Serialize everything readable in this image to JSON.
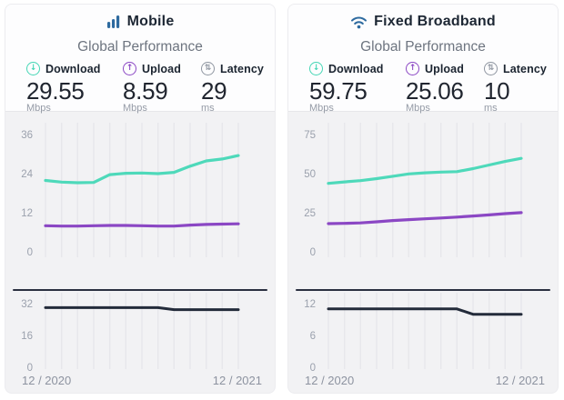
{
  "theme": {
    "download_color": "#4ed9ba",
    "upload_color": "#8b47c4",
    "latency_line_color": "#232b3a",
    "latency_icon_color": "#8f96a1",
    "brand_icon_blue": "#2d6a9f",
    "chart_background": "#f2f2f4"
  },
  "panels": [
    {
      "title": "Mobile",
      "icon": "mobile-signal-bars-icon",
      "section_title": "Global Performance",
      "stats": [
        {
          "label": "Download",
          "value": "29.55",
          "unit": "Mbps",
          "icon": "download-arrow-icon",
          "glyph": "↓",
          "color": "#45d6b5"
        },
        {
          "label": "Upload",
          "value": "8.59",
          "unit": "Mbps",
          "icon": "upload-arrow-icon",
          "glyph": "↑",
          "color": "#8b47c4"
        },
        {
          "label": "Latency",
          "value": "29",
          "unit": "ms",
          "icon": "latency-arrows-icon",
          "glyph": "⇅",
          "color": "#8f96a1"
        }
      ]
    },
    {
      "title": "Fixed Broadband",
      "icon": "wifi-icon",
      "section_title": "Global Performance",
      "stats": [
        {
          "label": "Download",
          "value": "59.75",
          "unit": "Mbps",
          "icon": "download-arrow-icon",
          "glyph": "↓",
          "color": "#45d6b5"
        },
        {
          "label": "Upload",
          "value": "25.06",
          "unit": "Mbps",
          "icon": "upload-arrow-icon",
          "glyph": "↑",
          "color": "#8b47c4"
        },
        {
          "label": "Latency",
          "value": "10",
          "unit": "ms",
          "icon": "latency-arrows-icon",
          "glyph": "⇅",
          "color": "#8f96a1"
        }
      ]
    }
  ],
  "chart_data": [
    {
      "id": "mobile-speed",
      "type": "line",
      "panel": "Mobile",
      "kind": "speed",
      "title": "Mobile Global Performance — speeds (Mbps), monthly 12/2020 to 12/2021",
      "x_tick_labels": [
        "12 / 2020",
        "12 / 2021"
      ],
      "n_points": 13,
      "yticks": [
        36,
        24,
        12,
        0
      ],
      "ylim": [
        0,
        36
      ],
      "grid": "faint vertical line per month, no horizontal gridlines",
      "legend": "none",
      "series": [
        {
          "name": "Download",
          "color": "#4ed9ba",
          "values": [
            21.9,
            21.4,
            21.2,
            21.3,
            23.7,
            24.1,
            24.2,
            24.0,
            24.4,
            26.3,
            27.9,
            28.5,
            29.55
          ]
        },
        {
          "name": "Upload",
          "color": "#8b47c4",
          "values": [
            8.0,
            7.9,
            7.9,
            8.0,
            8.1,
            8.1,
            8.0,
            7.9,
            7.9,
            8.2,
            8.4,
            8.5,
            8.59
          ]
        }
      ]
    },
    {
      "id": "mobile-latency",
      "type": "line",
      "panel": "Mobile",
      "kind": "latency",
      "title": "Mobile latency (ms), monthly 12/2020 to 12/2021",
      "x_tick_labels": [
        "12 / 2020",
        "12 / 2021"
      ],
      "n_points": 13,
      "yticks": [
        32,
        16,
        0
      ],
      "ylim": [
        0,
        32
      ],
      "grid": "faint vertical line per month",
      "legend": "none",
      "series": [
        {
          "name": "Latency",
          "color": "#232b3a",
          "values": [
            30,
            30,
            30,
            30,
            30,
            30,
            30,
            30,
            29,
            29,
            29,
            29,
            29
          ]
        }
      ]
    },
    {
      "id": "fixed-speed",
      "type": "line",
      "panel": "Fixed Broadband",
      "kind": "speed",
      "title": "Fixed Broadband Global Performance — speeds (Mbps), monthly 12/2020 to 12/2021",
      "x_tick_labels": [
        "12 / 2020",
        "12 / 2021"
      ],
      "n_points": 13,
      "yticks": [
        75,
        50,
        25,
        0
      ],
      "ylim": [
        0,
        75
      ],
      "grid": "faint vertical line per month, no horizontal gridlines",
      "legend": "none",
      "series": [
        {
          "name": "Download",
          "color": "#4ed9ba",
          "values": [
            43.8,
            44.7,
            45.5,
            46.8,
            48.3,
            49.8,
            50.5,
            51.0,
            51.3,
            53.2,
            55.5,
            57.8,
            59.75
          ]
        },
        {
          "name": "Upload",
          "color": "#8b47c4",
          "values": [
            18.0,
            18.2,
            18.5,
            19.2,
            20.0,
            20.6,
            21.1,
            21.6,
            22.2,
            22.9,
            23.6,
            24.4,
            25.06
          ]
        }
      ]
    },
    {
      "id": "fixed-latency",
      "type": "line",
      "panel": "Fixed Broadband",
      "kind": "latency",
      "title": "Fixed Broadband latency (ms), monthly 12/2020 to 12/2021",
      "x_tick_labels": [
        "12 / 2020",
        "12 / 2021"
      ],
      "n_points": 13,
      "yticks": [
        12,
        6,
        0
      ],
      "ylim": [
        0,
        12
      ],
      "grid": "faint vertical line per month",
      "legend": "none",
      "series": [
        {
          "name": "Latency",
          "color": "#232b3a",
          "values": [
            11,
            11,
            11,
            11,
            11,
            11,
            11,
            11,
            11,
            10,
            10,
            10,
            10
          ]
        }
      ]
    }
  ]
}
